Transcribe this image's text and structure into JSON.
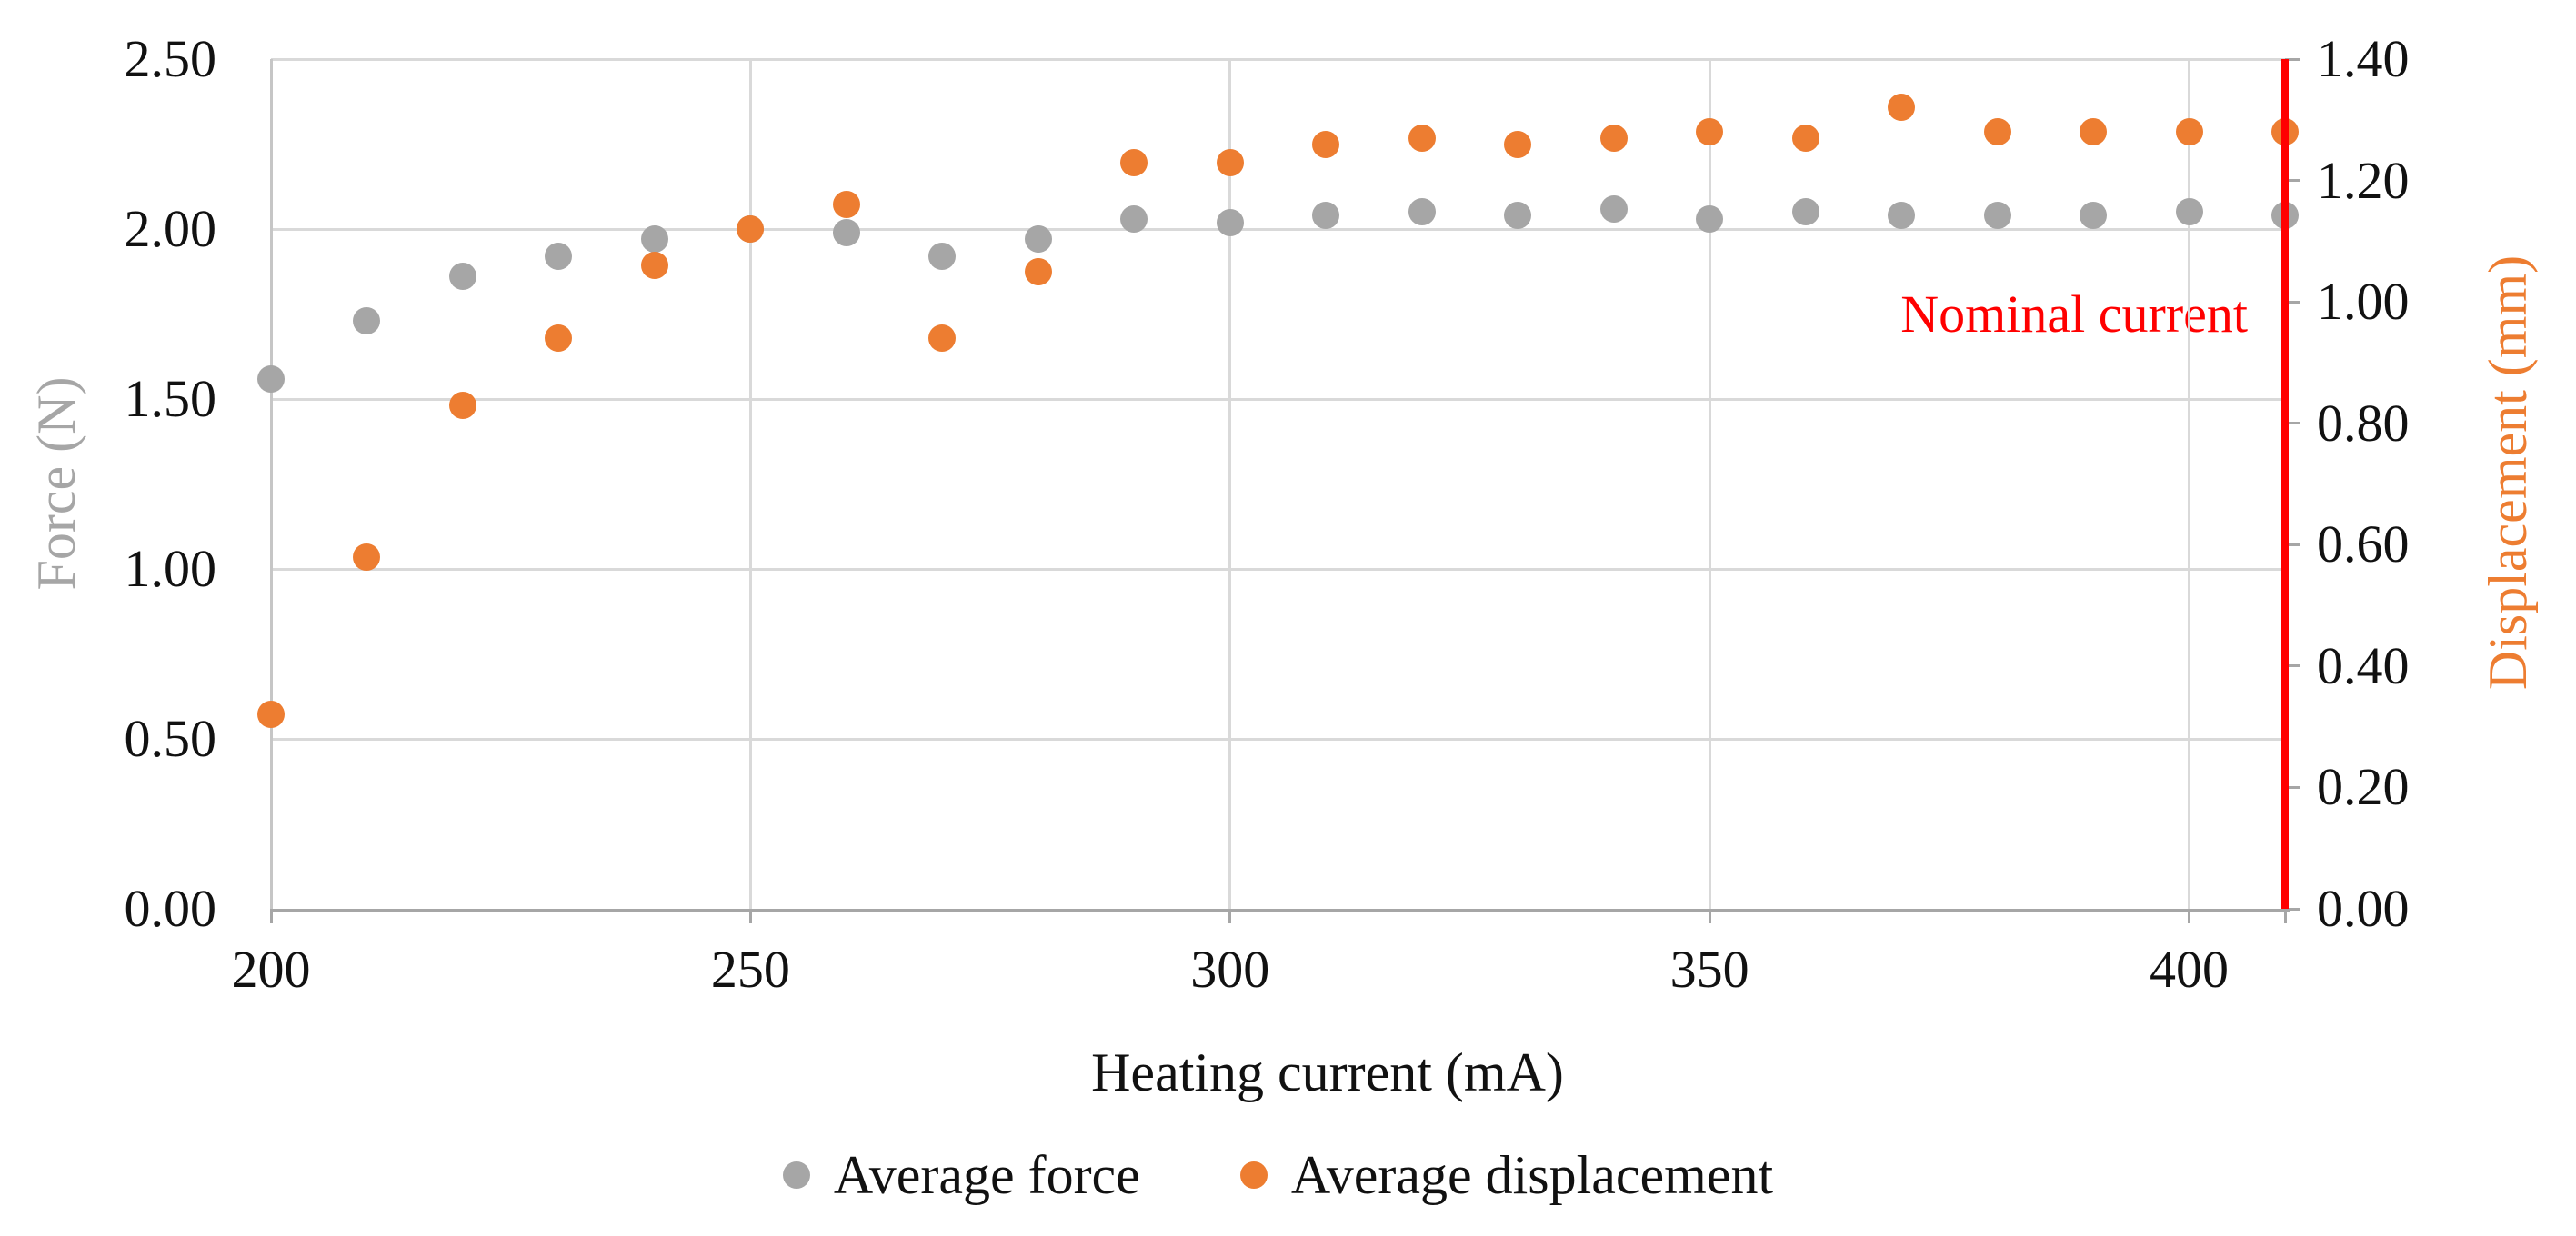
{
  "chart_data": {
    "type": "scatter",
    "x_axis": {
      "label": "Heating current (mA)",
      "tick_labels": [
        "200",
        "250",
        "300",
        "350",
        "400"
      ],
      "tick_values": [
        200,
        250,
        300,
        350,
        400
      ],
      "xlim": [
        200,
        410
      ],
      "gridlines": [
        250,
        300,
        350,
        400
      ]
    },
    "left_axis": {
      "label": "Force (N)",
      "tick_labels": [
        "2.50",
        "2.00",
        "1.50",
        "1.00",
        "0.50",
        "0.00"
      ],
      "tick_values": [
        2.5,
        2.0,
        1.5,
        1.0,
        0.5,
        0.0
      ],
      "ylim": [
        0,
        2.5
      ],
      "gridlines": [
        2.5,
        2.0,
        1.5,
        1.0,
        0.5
      ]
    },
    "right_axis": {
      "label": "Displacement (mm)",
      "tick_labels": [
        "1.40",
        "1.20",
        "1.00",
        "0.80",
        "0.60",
        "0.40",
        "0.20",
        "0.00"
      ],
      "tick_values": [
        1.4,
        1.2,
        1.0,
        0.8,
        0.6,
        0.4,
        0.2,
        0.0
      ],
      "ylim": [
        0,
        1.4
      ]
    },
    "x": [
      200,
      210,
      220,
      230,
      240,
      250,
      260,
      270,
      280,
      290,
      300,
      310,
      320,
      330,
      340,
      350,
      360,
      370,
      380,
      390,
      400,
      410
    ],
    "series": [
      {
        "name": "Average force",
        "axis": "left",
        "color": "#a6a6a6",
        "values": [
          1.56,
          1.73,
          1.86,
          1.92,
          1.97,
          2.0,
          1.99,
          1.92,
          1.97,
          2.03,
          2.02,
          2.04,
          2.05,
          2.04,
          2.06,
          2.03,
          2.05,
          2.04,
          2.04,
          2.04,
          2.05,
          2.04
        ]
      },
      {
        "name": "Average displacement",
        "axis": "right",
        "color": "#ed7d31",
        "values": [
          0.32,
          0.58,
          0.83,
          0.94,
          1.06,
          1.12,
          1.16,
          0.94,
          1.05,
          1.23,
          1.23,
          1.26,
          1.27,
          1.26,
          1.27,
          1.28,
          1.27,
          1.32,
          1.28,
          1.28,
          1.28,
          1.28
        ]
      }
    ],
    "annotation": {
      "text": "Nominal current",
      "color": "#ff0000",
      "x_value": 410
    },
    "legend_position": "bottom",
    "grid": true
  },
  "legend": {
    "items": [
      {
        "label": "Average force",
        "color": "#a6a6a6"
      },
      {
        "label": "Average displacement",
        "color": "#ed7d31"
      }
    ]
  },
  "colors": {
    "force_series": "#a6a6a6",
    "displacement_series": "#ed7d31",
    "nominal_line": "#ff0000",
    "gridline": "#d9d9d9",
    "axis_line": "#a6a6a6",
    "tick_text": "#111111"
  }
}
